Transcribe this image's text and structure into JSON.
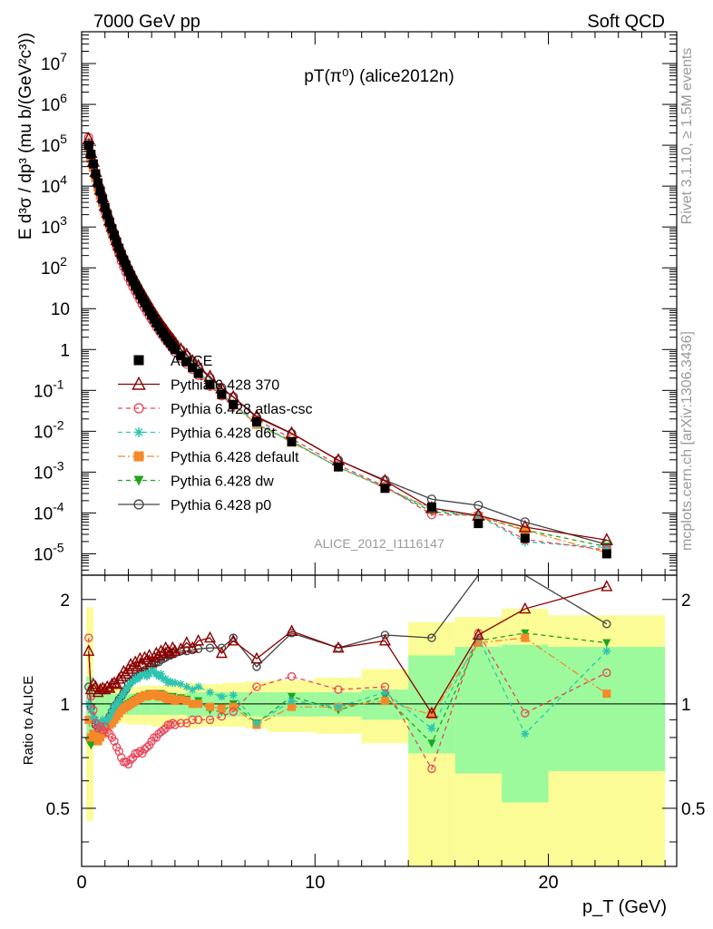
{
  "header": {
    "left": "7000 GeV pp",
    "right": "Soft QCD"
  },
  "side_labels": {
    "rivet": "Rivet 3.1.10, ≥ 1.5M events",
    "mcplots": "mcplots.cern.ch [arXiv:1306.3436]"
  },
  "chart_data": [
    {
      "type": "scatter",
      "panel": "main",
      "title": "pT(π⁰) (alice2012n)",
      "watermark": "ALICE_2012_I1116147",
      "ylabel": "E d³σ / dp³ (mu b/(GeV²c³))",
      "yscale": "log",
      "ylim": [
        3e-06,
        60000000.0
      ],
      "xlim": [
        0,
        25.5
      ],
      "y_ticks": [
        "10^-5",
        "10^-4",
        "10^-3",
        "10^-2",
        "10^-1",
        "1",
        "10",
        "10^2",
        "10^3",
        "10^4",
        "10^5",
        "10^6",
        "10^7"
      ],
      "legend_position": "center-left",
      "x": [
        0.3,
        0.4,
        0.5,
        0.6,
        0.7,
        0.8,
        0.9,
        1.0,
        1.1,
        1.2,
        1.3,
        1.4,
        1.5,
        1.6,
        1.7,
        1.8,
        1.9,
        2.0,
        2.1,
        2.2,
        2.3,
        2.4,
        2.5,
        2.6,
        2.7,
        2.8,
        2.9,
        3.0,
        3.1,
        3.2,
        3.3,
        3.4,
        3.5,
        3.6,
        3.7,
        3.8,
        3.9,
        4.0,
        4.25,
        4.5,
        4.75,
        5.0,
        5.5,
        6.0,
        6.5,
        7.5,
        9.0,
        11.0,
        13.0,
        15.0,
        17.0,
        19.0,
        22.5
      ],
      "series": [
        {
          "name": "ALICE",
          "color": "#000000",
          "marker": "square",
          "values": [
            100000,
            60000,
            35000,
            20000,
            12000,
            7500,
            4800,
            3000,
            2000,
            1300,
            900,
            620,
            420,
            300,
            210,
            155,
            115,
            85,
            64,
            48,
            37,
            29,
            22.5,
            17.5,
            14,
            11,
            8.8,
            7,
            5.6,
            4.5,
            3.7,
            3,
            2.5,
            2.05,
            1.7,
            1.45,
            1.2,
            1.0,
            0.7,
            0.5,
            0.36,
            0.26,
            0.14,
            0.08,
            0.045,
            0.017,
            0.0055,
            0.00135,
            0.0004,
            0.00014,
            5.5e-05,
            2.4e-05,
            1e-05
          ]
        },
        {
          "name": "Pythia 6.428 370",
          "color": "#8b0000",
          "marker": "open-triangle",
          "ratios": [
            1.42,
            1.1,
            1.14,
            1.12,
            1.08,
            1.1,
            1.11,
            1.1,
            1.12,
            1.11,
            1.14,
            1.15,
            1.14,
            1.18,
            1.2,
            1.24,
            1.22,
            1.26,
            1.3,
            1.28,
            1.32,
            1.28,
            1.35,
            1.3,
            1.36,
            1.34,
            1.38,
            1.32,
            1.36,
            1.4,
            1.38,
            1.42,
            1.4,
            1.45,
            1.42,
            1.4,
            1.45,
            1.42,
            1.44,
            1.5,
            1.45,
            1.52,
            1.55,
            1.4,
            1.52,
            1.35,
            1.62,
            1.45,
            1.52,
            0.94,
            1.58,
            1.88,
            2.18
          ]
        },
        {
          "name": "Pythia 6.428 atlas-csc",
          "color": "#e8465a",
          "marker": "open-circle",
          "ratios": [
            1.55,
            1.05,
            0.96,
            0.88,
            0.85,
            0.86,
            0.84,
            0.86,
            0.83,
            0.82,
            0.8,
            0.78,
            0.75,
            0.73,
            0.7,
            0.68,
            0.68,
            0.67,
            0.69,
            0.7,
            0.72,
            0.72,
            0.73,
            0.72,
            0.74,
            0.75,
            0.76,
            0.78,
            0.8,
            0.8,
            0.82,
            0.83,
            0.84,
            0.85,
            0.87,
            0.87,
            0.88,
            0.87,
            0.88,
            0.88,
            0.9,
            0.9,
            0.9,
            0.92,
            0.95,
            1.12,
            1.2,
            1.1,
            1.12,
            0.65,
            1.6,
            0.94,
            1.23
          ]
        },
        {
          "name": "Pythia 6.428 d6t",
          "color": "#2ec4b0",
          "marker": "star",
          "ratios": [
            1.0,
            0.96,
            0.92,
            0.9,
            0.88,
            0.87,
            0.9,
            0.88,
            0.9,
            0.92,
            0.95,
            0.98,
            1.0,
            1.02,
            1.05,
            1.07,
            1.1,
            1.12,
            1.15,
            1.16,
            1.18,
            1.18,
            1.2,
            1.22,
            1.22,
            1.2,
            1.22,
            1.25,
            1.24,
            1.22,
            1.2,
            1.22,
            1.18,
            1.18,
            1.15,
            1.16,
            1.15,
            1.15,
            1.14,
            1.12,
            1.1,
            1.12,
            1.08,
            1.05,
            1.06,
            0.88,
            1.02,
            0.98,
            1.08,
            0.85,
            1.55,
            0.82,
            1.42
          ]
        },
        {
          "name": "Pythia 6.428 default",
          "color": "#f5892a",
          "marker": "square",
          "ratios": [
            0.9,
            0.8,
            0.82,
            0.8,
            0.78,
            0.8,
            0.82,
            0.84,
            0.86,
            0.87,
            0.88,
            0.9,
            0.92,
            0.94,
            0.96,
            0.97,
            0.98,
            0.99,
            1.0,
            1.01,
            1.02,
            1.03,
            1.04,
            1.05,
            1.06,
            1.05,
            1.06,
            1.06,
            1.07,
            1.06,
            1.05,
            1.05,
            1.06,
            1.04,
            1.03,
            1.04,
            1.03,
            1.02,
            1.03,
            1.02,
            1.0,
            1.0,
            0.98,
            0.97,
            0.98,
            0.87,
            0.98,
            0.98,
            1.02,
            0.93,
            1.5,
            1.55,
            1.07
          ]
        },
        {
          "name": "Pythia 6.428 dw",
          "color": "#1ea51e",
          "marker": "filled-triangle-down",
          "ratios": [
            0.78,
            0.76,
            0.78,
            0.8,
            0.8,
            0.82,
            0.84,
            0.86,
            0.88,
            0.89,
            0.9,
            0.92,
            0.94,
            0.95,
            0.97,
            0.98,
            0.99,
            1.0,
            1.01,
            1.02,
            1.03,
            1.04,
            1.05,
            1.05,
            1.06,
            1.06,
            1.07,
            1.06,
            1.07,
            1.06,
            1.06,
            1.07,
            1.06,
            1.05,
            1.05,
            1.04,
            1.05,
            1.03,
            1.04,
            1.03,
            1.0,
            1.02,
            0.96,
            0.95,
            1.0,
            0.88,
            1.05,
            0.96,
            1.05,
            0.77,
            1.52,
            1.6,
            1.5
          ]
        },
        {
          "name": "Pythia 6.428 p0",
          "color": "#444444",
          "marker": "open-circle",
          "ratios": [
            1.12,
            0.98,
            0.9,
            0.87,
            0.86,
            0.88,
            0.87,
            0.88,
            0.9,
            0.92,
            0.95,
            0.98,
            1.0,
            1.03,
            1.05,
            1.08,
            1.1,
            1.14,
            1.16,
            1.18,
            1.2,
            1.2,
            1.22,
            1.24,
            1.25,
            1.26,
            1.28,
            1.3,
            1.3,
            1.32,
            1.32,
            1.34,
            1.35,
            1.36,
            1.38,
            1.38,
            1.4,
            1.4,
            1.42,
            1.42,
            1.43,
            1.44,
            1.45,
            1.45,
            1.55,
            1.28,
            1.6,
            1.45,
            1.58,
            1.55,
            2.8,
            2.5,
            1.7
          ]
        }
      ]
    },
    {
      "type": "scatter",
      "panel": "ratio",
      "ylabel": "Ratio to ALICE",
      "xlabel": "p_T (GeV)",
      "yscale": "log",
      "ylim": [
        0.34,
        2.35
      ],
      "xlim": [
        0,
        25.5
      ],
      "x_ticks": [
        "0",
        "10",
        "20"
      ],
      "y_ticks": [
        "0.5",
        "1",
        "2"
      ],
      "reference_line": 1,
      "band_inner_color": "#9cfa9c",
      "band_outer_color": "#fcfc96",
      "band_edges": [
        0.2,
        0.5,
        1.0,
        1.5,
        2.0,
        2.5,
        3.0,
        3.5,
        4.0,
        4.5,
        5.0,
        6.0,
        7.0,
        8.0,
        10.0,
        12.0,
        14.0,
        16.0,
        18.0,
        20.0,
        25.0
      ],
      "band_inner": [
        [
          0.8,
          1.2
        ],
        [
          0.92,
          1.08
        ],
        [
          0.93,
          1.07
        ],
        [
          0.93,
          1.07
        ],
        [
          0.93,
          1.07
        ],
        [
          0.93,
          1.07
        ],
        [
          0.93,
          1.07
        ],
        [
          0.93,
          1.07
        ],
        [
          0.93,
          1.07
        ],
        [
          0.92,
          1.08
        ],
        [
          0.92,
          1.08
        ],
        [
          0.92,
          1.08
        ],
        [
          0.92,
          1.08
        ],
        [
          0.92,
          1.08
        ],
        [
          0.92,
          1.08
        ],
        [
          0.9,
          1.1
        ],
        [
          0.72,
          1.38
        ],
        [
          0.63,
          1.46
        ],
        [
          0.52,
          1.48
        ],
        [
          0.64,
          1.46
        ]
      ],
      "band_outer": [
        [
          0.46,
          1.9
        ],
        [
          0.86,
          1.14
        ],
        [
          0.88,
          1.12
        ],
        [
          0.88,
          1.12
        ],
        [
          0.87,
          1.12
        ],
        [
          0.87,
          1.13
        ],
        [
          0.86,
          1.13
        ],
        [
          0.86,
          1.13
        ],
        [
          0.86,
          1.14
        ],
        [
          0.85,
          1.15
        ],
        [
          0.86,
          1.14
        ],
        [
          0.86,
          1.15
        ],
        [
          0.85,
          1.16
        ],
        [
          0.83,
          1.17
        ],
        [
          0.82,
          1.19
        ],
        [
          0.77,
          1.26
        ],
        [
          0.34,
          1.72
        ],
        [
          0.34,
          1.78
        ],
        [
          0.34,
          1.88
        ],
        [
          0.34,
          1.8
        ]
      ]
    }
  ]
}
